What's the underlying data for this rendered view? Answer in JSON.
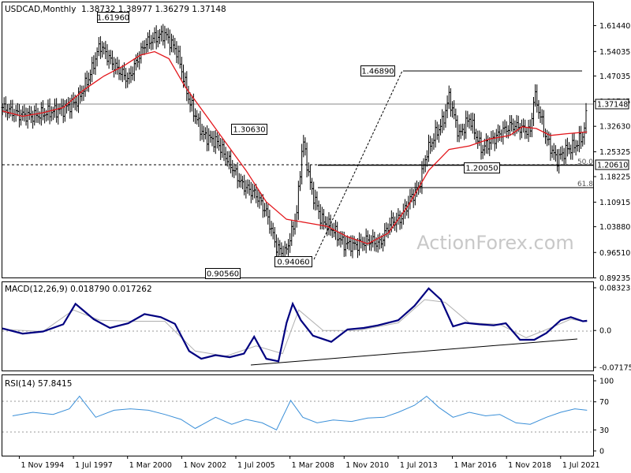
{
  "header": {
    "symbol": "USDCAD,Monthly",
    "ohlc": "1.38732 1.38977 1.36279 1.37148"
  },
  "watermark": "ActionForex.com",
  "colors": {
    "price": "#000000",
    "sma": "#e3161b",
    "macd": "#000080",
    "signal": "#b0b0b0",
    "rsi": "#3a8fd8",
    "grid": "#000000"
  },
  "chart_data": [
    {
      "type": "line",
      "panel": "price",
      "series_style": "ohlc-bars",
      "ylim": [
        0.8935,
        1.681
      ],
      "y_ticks": [
        "1.61440",
        "1.54035",
        "1.47035",
        "1.39745",
        "1.32630",
        "1.25325",
        "1.18225",
        "1.10915",
        "1.03880",
        "0.96510",
        "0.89235"
      ],
      "x_ticks": [
        "1 Nov 1994",
        "1 Jul 1997",
        "1 Mar 2000",
        "1 Nov 2002",
        "1 Jul 2005",
        "1 Mar 2008",
        "1 Nov 2010",
        "1 Jul 2013",
        "1 Mar 2016",
        "1 Nov 2018",
        "1 Jul 2021"
      ],
      "x_range": [
        1994.0,
        2023.1
      ],
      "series": [
        {
          "name": "",
          "x": [
            1994.0,
            1994.8,
            1995.5,
            1996.2,
            1997.0,
            1997.7,
            1998.3,
            1998.8,
            1999.5,
            2000.2,
            2001.0,
            2001.5,
            2002.0,
            2002.6,
            2003.2,
            2003.9,
            2004.6,
            2005.2,
            2005.8,
            2006.5,
            2007.0,
            2007.5,
            2007.9,
            2008.2,
            2008.5,
            2008.8,
            2009.2,
            2009.7,
            2010.3,
            2010.8,
            2011.4,
            2012.0,
            2012.6,
            2013.1,
            2013.6,
            2014.1,
            2014.5,
            2014.9,
            2015.3,
            2015.7,
            2016.0,
            2016.5,
            2017.0,
            2017.6,
            2018.0,
            2018.6,
            2019.1,
            2019.6,
            2020.0,
            2020.2,
            2020.8,
            2021.3,
            2021.8,
            2022.2,
            2022.6,
            2022.8
          ],
          "close": [
            1.38,
            1.36,
            1.355,
            1.365,
            1.375,
            1.4,
            1.47,
            1.56,
            1.5,
            1.46,
            1.56,
            1.58,
            1.59,
            1.54,
            1.4,
            1.3,
            1.28,
            1.22,
            1.16,
            1.13,
            1.08,
            0.98,
            0.96,
            1.01,
            1.08,
            1.29,
            1.15,
            1.06,
            1.03,
            0.99,
            0.985,
            1.0,
            0.99,
            1.05,
            1.06,
            1.12,
            1.15,
            1.25,
            1.3,
            1.34,
            1.41,
            1.3,
            1.35,
            1.26,
            1.28,
            1.31,
            1.33,
            1.32,
            1.31,
            1.42,
            1.29,
            1.23,
            1.26,
            1.27,
            1.3,
            1.371
          ]
        },
        {
          "name": "",
          "x": [
            1994.0,
            1995.0,
            1996.0,
            1997.0,
            1998.0,
            1999.0,
            2000.0,
            2000.8,
            2001.5,
            2002.2,
            2003.0,
            2004.0,
            2005.0,
            2006.0,
            2007.0,
            2008.0,
            2009.0,
            2010.0,
            2011.0,
            2012.0,
            2013.0,
            2014.0,
            2015.0,
            2016.0,
            2017.0,
            2018.0,
            2019.0,
            2019.6,
            2020.3,
            2021.0,
            2021.8,
            2022.8
          ],
          "y": [
            1.37,
            1.355,
            1.365,
            1.38,
            1.43,
            1.47,
            1.5,
            1.53,
            1.54,
            1.52,
            1.44,
            1.36,
            1.28,
            1.2,
            1.11,
            1.06,
            1.05,
            1.04,
            1.01,
            0.99,
            1.02,
            1.1,
            1.2,
            1.26,
            1.27,
            1.29,
            1.3,
            1.325,
            1.32,
            1.3,
            1.305,
            1.31
          ]
        }
      ],
      "annotations": [
        "1.61960",
        "1.30630",
        "0.90560",
        "0.94060",
        "1.46890",
        "1.20050",
        "1.37148",
        "1.20610",
        "50.0",
        "61.8"
      ]
    },
    {
      "type": "line",
      "panel": "macd",
      "title": "MACD(12,26,9) 0.018790 0.017262",
      "ylim": [
        -0.071752,
        0.083235
      ],
      "y_ticks": [
        "0.083235",
        "0.0",
        "-0.071752"
      ],
      "series": [
        {
          "name": "",
          "x": [
            1994.0,
            1995.0,
            1996.0,
            1997.0,
            1997.6,
            1998.5,
            1999.3,
            2000.2,
            2001.0,
            2001.8,
            2002.5,
            2003.2,
            2003.8,
            2004.5,
            2005.2,
            2005.9,
            2006.4,
            2007.0,
            2007.6,
            2008.0,
            2008.3,
            2008.7,
            2009.3,
            2010.2,
            2011.0,
            2011.8,
            2012.5,
            2013.5,
            2014.3,
            2015.0,
            2015.6,
            2016.2,
            2016.8,
            2017.5,
            2018.2,
            2018.8,
            2019.5,
            2020.2,
            2020.8,
            2021.5,
            2022.0,
            2022.6,
            2022.8
          ],
          "y": [
            0.004,
            -0.006,
            -0.002,
            0.012,
            0.052,
            0.022,
            0.005,
            0.014,
            0.032,
            0.026,
            0.013,
            -0.04,
            -0.055,
            -0.048,
            -0.052,
            -0.045,
            -0.012,
            -0.055,
            -0.06,
            0.015,
            0.052,
            0.02,
            -0.01,
            -0.022,
            0.002,
            0.005,
            0.01,
            0.02,
            0.048,
            0.082,
            0.06,
            0.008,
            0.015,
            0.012,
            0.01,
            0.014,
            -0.018,
            -0.018,
            -0.005,
            0.02,
            0.026,
            0.018,
            0.019
          ]
        },
        {
          "name": "",
          "x": [
            1994.0,
            1996.0,
            1997.5,
            1998.8,
            2000.5,
            2002.0,
            2003.5,
            2005.0,
            2006.5,
            2007.8,
            2008.6,
            2009.8,
            2011.5,
            2013.5,
            2014.8,
            2015.8,
            2017.0,
            2018.5,
            2019.8,
            2021.0,
            2022.0,
            2022.8
          ],
          "y": [
            0.002,
            -0.002,
            0.04,
            0.02,
            0.018,
            0.018,
            -0.04,
            -0.05,
            -0.03,
            -0.045,
            0.04,
            0.0,
            0.0,
            0.015,
            0.06,
            0.055,
            0.015,
            0.012,
            -0.014,
            0.005,
            0.022,
            0.017
          ]
        }
      ]
    },
    {
      "type": "line",
      "panel": "rsi",
      "title": "RSI(14) 57.8415",
      "ylim": [
        0,
        100
      ],
      "y_ticks": [
        "100",
        "70",
        "30",
        "0"
      ],
      "series": [
        {
          "name": "",
          "x": [
            1994.5,
            1995.5,
            1996.5,
            1997.3,
            1997.8,
            1998.6,
            1999.5,
            2000.3,
            2001.2,
            2002.0,
            2002.8,
            2003.5,
            2004.5,
            2005.3,
            2006.0,
            2006.8,
            2007.5,
            2008.2,
            2008.8,
            2009.5,
            2010.3,
            2011.2,
            2012.0,
            2012.8,
            2013.5,
            2014.3,
            2014.9,
            2015.5,
            2016.2,
            2017.0,
            2017.8,
            2018.5,
            2019.3,
            2020.0,
            2020.8,
            2021.5,
            2022.2,
            2022.8
          ],
          "y": [
            50,
            55,
            52,
            60,
            78,
            48,
            58,
            60,
            58,
            52,
            45,
            32,
            48,
            38,
            45,
            40,
            30,
            72,
            48,
            40,
            44,
            42,
            47,
            48,
            55,
            65,
            78,
            62,
            48,
            55,
            50,
            52,
            40,
            38,
            48,
            55,
            60,
            58
          ]
        }
      ]
    }
  ]
}
